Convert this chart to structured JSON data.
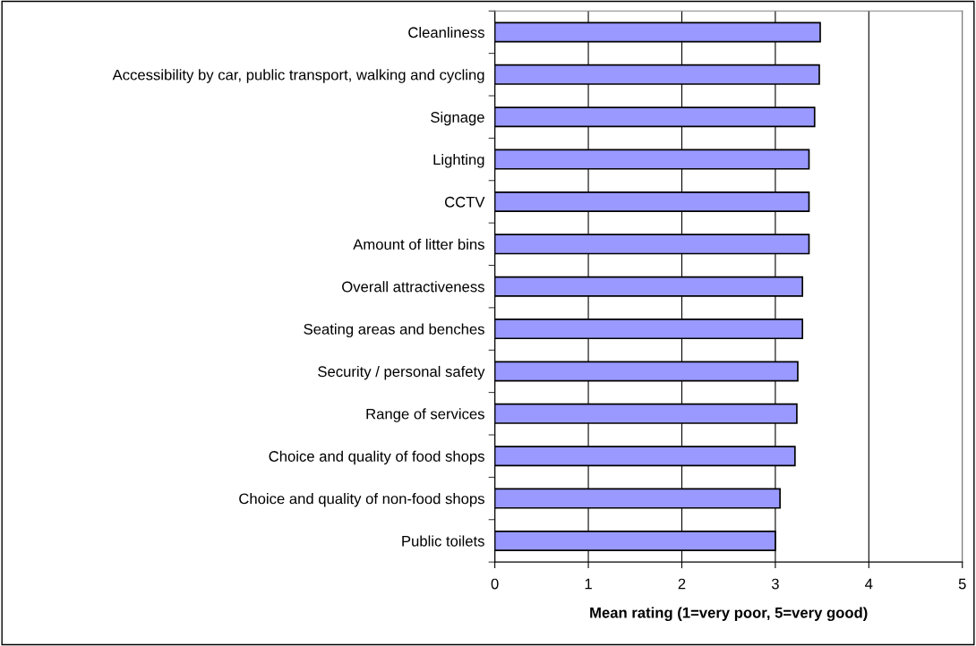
{
  "chart_data": {
    "type": "bar",
    "orientation": "horizontal",
    "xlabel": "Mean rating (1=very poor, 5=very good)",
    "categories": [
      "Cleanliness",
      "Accessibility by car, public transport, walking and cycling",
      "Signage",
      "Lighting",
      "CCTV",
      "Amount of litter bins",
      "Overall attractiveness",
      "Seating areas and benches",
      "Security / personal safety",
      "Range of services",
      "Choice and quality of food shops",
      "Choice and quality of non-food shops",
      "Public toilets"
    ],
    "values": [
      3.48,
      3.47,
      3.42,
      3.36,
      3.36,
      3.36,
      3.29,
      3.29,
      3.24,
      3.23,
      3.21,
      3.05,
      3.0
    ],
    "color": "#9999ff",
    "xlim": [
      0,
      5
    ],
    "xticks": [
      0,
      1,
      2,
      3,
      4,
      5
    ],
    "grid": "x"
  }
}
